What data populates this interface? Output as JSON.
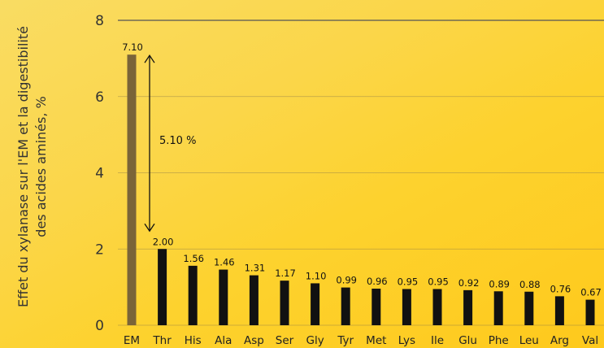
{
  "chart_data": {
    "type": "bar",
    "title": "",
    "ylabel_lines": [
      "Effet du xylanase sur l'EM et la digestibilité",
      "des acides aminés, %"
    ],
    "xlabel": "",
    "ylim": [
      0,
      8
    ],
    "yticks": [
      "0",
      "2",
      "4",
      "6",
      "8"
    ],
    "grid": true,
    "categories": [
      "EM",
      "Thr",
      "His",
      "Ala",
      "Asp",
      "Ser",
      "Gly",
      "Tyr",
      "Met",
      "Lys",
      "Ile",
      "Glu",
      "Phe",
      "Leu",
      "Arg",
      "Val"
    ],
    "values": [
      7.1,
      2.0,
      1.56,
      1.46,
      1.31,
      1.17,
      1.1,
      0.99,
      0.96,
      0.95,
      0.95,
      0.92,
      0.89,
      0.88,
      0.76,
      0.67
    ],
    "value_labels": [
      "7.10",
      "2.00",
      "1.56",
      "1.46",
      "1.31",
      "1.17",
      "1.10",
      "0.99",
      "0.96",
      "0.95",
      "0.95",
      "0.92",
      "0.89",
      "0.88",
      "0.76",
      "0.67"
    ],
    "bar_colors": [
      "#7a6438",
      "#111111",
      "#111111",
      "#111111",
      "#111111",
      "#111111",
      "#111111",
      "#111111",
      "#111111",
      "#111111",
      "#111111",
      "#111111",
      "#111111",
      "#111111",
      "#111111",
      "#111111"
    ],
    "annotation": {
      "text": "5.10 %",
      "from": 2.0,
      "to": 7.1
    }
  }
}
